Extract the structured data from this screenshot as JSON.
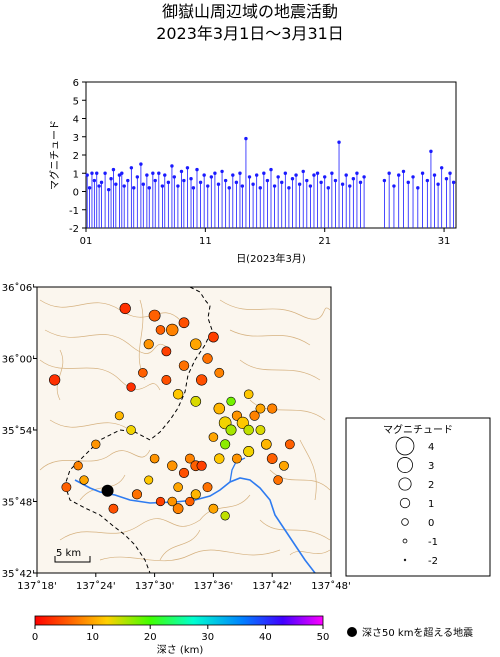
{
  "title": "御嶽山周辺域の地震活動",
  "subtitle": "2023年3月1日～3月31日",
  "chart_data": [
    {
      "type": "bar",
      "name": "magnitude-time",
      "ylabel": "マグニチュード",
      "xlabel": "日(2023年3月)",
      "ylim": [
        -2,
        6
      ],
      "xlim": [
        1,
        32
      ],
      "yticks": [
        "-2",
        "-1",
        "0",
        "1",
        "2",
        "3",
        "4",
        "5",
        "6"
      ],
      "xticks": [
        "01",
        "11",
        "21",
        "31"
      ],
      "series_color": "#1a1aff",
      "points": [
        [
          1.1,
          0.9
        ],
        [
          1.3,
          0.2
        ],
        [
          1.5,
          1.0
        ],
        [
          1.7,
          0.6
        ],
        [
          1.9,
          1.0
        ],
        [
          2.1,
          0.3
        ],
        [
          2.3,
          0.5
        ],
        [
          2.6,
          1.0
        ],
        [
          2.9,
          0.1
        ],
        [
          3.1,
          0.7
        ],
        [
          3.3,
          1.2
        ],
        [
          3.5,
          0.4
        ],
        [
          3.8,
          0.9
        ],
        [
          4.0,
          1.0
        ],
        [
          4.2,
          0.3
        ],
        [
          4.5,
          0.6
        ],
        [
          4.8,
          1.3
        ],
        [
          5.0,
          0.2
        ],
        [
          5.3,
          0.8
        ],
        [
          5.6,
          1.5
        ],
        [
          5.8,
          0.4
        ],
        [
          6.1,
          0.9
        ],
        [
          6.3,
          0.2
        ],
        [
          6.6,
          1.0
        ],
        [
          6.8,
          0.6
        ],
        [
          7.1,
          1.0
        ],
        [
          7.4,
          0.3
        ],
        [
          7.6,
          0.9
        ],
        [
          7.9,
          0.5
        ],
        [
          8.2,
          1.4
        ],
        [
          8.4,
          0.8
        ],
        [
          8.7,
          0.3
        ],
        [
          9.0,
          1.1
        ],
        [
          9.2,
          0.6
        ],
        [
          9.5,
          1.3
        ],
        [
          9.8,
          0.7
        ],
        [
          10.0,
          0.2
        ],
        [
          10.3,
          1.2
        ],
        [
          10.6,
          0.5
        ],
        [
          10.9,
          0.9
        ],
        [
          11.2,
          0.3
        ],
        [
          11.5,
          0.8
        ],
        [
          11.8,
          1.0
        ],
        [
          12.1,
          0.4
        ],
        [
          12.4,
          1.1
        ],
        [
          12.7,
          0.6
        ],
        [
          13.0,
          0.2
        ],
        [
          13.3,
          0.9
        ],
        [
          13.6,
          0.5
        ],
        [
          13.9,
          1.0
        ],
        [
          14.1,
          0.3
        ],
        [
          14.4,
          2.9
        ],
        [
          14.7,
          0.8
        ],
        [
          15.0,
          0.4
        ],
        [
          15.3,
          0.9
        ],
        [
          15.6,
          0.2
        ],
        [
          15.9,
          1.0
        ],
        [
          16.2,
          0.6
        ],
        [
          16.5,
          1.2
        ],
        [
          16.8,
          0.3
        ],
        [
          17.1,
          0.8
        ],
        [
          17.4,
          0.5
        ],
        [
          17.7,
          1.0
        ],
        [
          18.0,
          0.2
        ],
        [
          18.3,
          0.7
        ],
        [
          18.6,
          0.9
        ],
        [
          18.9,
          0.4
        ],
        [
          19.2,
          1.1
        ],
        [
          19.5,
          0.6
        ],
        [
          19.8,
          0.3
        ],
        [
          20.1,
          0.9
        ],
        [
          20.4,
          1.0
        ],
        [
          20.7,
          0.5
        ],
        [
          21.0,
          0.8
        ],
        [
          21.3,
          0.2
        ],
        [
          21.6,
          1.0
        ],
        [
          21.9,
          0.6
        ],
        [
          22.2,
          2.7
        ],
        [
          22.5,
          0.4
        ],
        [
          22.8,
          0.9
        ],
        [
          23.1,
          0.3
        ],
        [
          23.4,
          0.7
        ],
        [
          23.7,
          1.0
        ],
        [
          24.0,
          0.5
        ],
        [
          24.3,
          0.8
        ],
        [
          26.0,
          0.6
        ],
        [
          26.4,
          1.0
        ],
        [
          26.8,
          0.3
        ],
        [
          27.2,
          0.9
        ],
        [
          27.6,
          1.1
        ],
        [
          28.0,
          0.5
        ],
        [
          28.4,
          0.8
        ],
        [
          28.8,
          0.2
        ],
        [
          29.2,
          1.0
        ],
        [
          29.6,
          0.6
        ],
        [
          29.9,
          2.2
        ],
        [
          30.2,
          0.9
        ],
        [
          30.5,
          0.4
        ],
        [
          30.8,
          1.3
        ],
        [
          31.2,
          0.7
        ],
        [
          31.5,
          1.0
        ],
        [
          31.8,
          0.5
        ]
      ]
    },
    {
      "type": "scatter",
      "name": "epicenter-map",
      "xlim": [
        137.3,
        137.8
      ],
      "ylim": [
        35.7,
        36.1
      ],
      "xticks": [
        "137˚18'",
        "137˚24'",
        "137˚30'",
        "137˚36'",
        "137˚42'",
        "137˚48'"
      ],
      "yticks": [
        "35˚42'",
        "35˚48'",
        "35˚54'",
        "36˚00'",
        "36˚06'"
      ],
      "scale_label": "5 km",
      "deep_event_label": "深さ50 kmを超える地震",
      "deep_event": [
        137.42,
        35.815
      ],
      "points": [
        [
          137.45,
          36.07,
          1.4,
          3
        ],
        [
          137.5,
          36.06,
          1.6,
          6
        ],
        [
          137.53,
          36.04,
          1.8,
          8
        ],
        [
          137.55,
          36.05,
          1.2,
          5
        ],
        [
          137.57,
          36.02,
          1.5,
          10
        ],
        [
          137.52,
          36.01,
          0.9,
          4
        ],
        [
          137.55,
          35.99,
          1.1,
          7
        ],
        [
          137.6,
          36.03,
          1.2,
          4
        ],
        [
          137.61,
          35.98,
          0.9,
          8
        ],
        [
          137.58,
          35.97,
          1.4,
          5
        ],
        [
          137.49,
          36.02,
          1.0,
          9
        ],
        [
          137.48,
          35.98,
          0.8,
          6
        ],
        [
          137.46,
          35.96,
          0.7,
          3
        ],
        [
          137.54,
          35.95,
          1.1,
          12
        ],
        [
          137.57,
          35.94,
          1.2,
          14
        ],
        [
          137.61,
          35.93,
          1.5,
          11
        ],
        [
          137.62,
          35.91,
          1.9,
          13
        ],
        [
          137.63,
          35.9,
          1.3,
          16
        ],
        [
          137.64,
          35.92,
          1.0,
          9
        ],
        [
          137.65,
          35.91,
          1.7,
          12
        ],
        [
          137.66,
          35.9,
          1.1,
          15
        ],
        [
          137.6,
          35.89,
          0.8,
          10
        ],
        [
          137.62,
          35.88,
          1.0,
          17
        ],
        [
          137.67,
          35.92,
          1.0,
          8
        ],
        [
          137.68,
          35.9,
          0.9,
          14
        ],
        [
          137.69,
          35.88,
          1.2,
          11
        ],
        [
          137.66,
          35.87,
          1.3,
          13
        ],
        [
          137.64,
          35.86,
          0.9,
          9
        ],
        [
          137.61,
          35.86,
          1.1,
          12
        ],
        [
          137.7,
          35.86,
          1.2,
          6
        ],
        [
          137.72,
          35.85,
          0.9,
          10
        ],
        [
          137.71,
          35.83,
          0.8,
          7
        ],
        [
          137.56,
          35.86,
          0.9,
          8
        ],
        [
          137.57,
          35.85,
          1.2,
          6
        ],
        [
          137.55,
          35.84,
          1.0,
          5
        ],
        [
          137.53,
          35.85,
          1.1,
          9
        ],
        [
          137.58,
          35.85,
          1.0,
          4
        ],
        [
          137.54,
          35.82,
          0.8,
          10
        ],
        [
          137.59,
          35.82,
          0.9,
          7
        ],
        [
          137.57,
          35.81,
          1.0,
          11
        ],
        [
          137.56,
          35.8,
          0.7,
          6
        ],
        [
          137.53,
          35.8,
          0.8,
          9
        ],
        [
          137.54,
          35.79,
          1.2,
          8
        ],
        [
          137.51,
          35.8,
          0.7,
          4
        ],
        [
          137.47,
          35.81,
          1.0,
          7
        ],
        [
          137.43,
          35.79,
          0.9,
          5
        ],
        [
          137.37,
          35.85,
          0.7,
          8
        ],
        [
          137.38,
          35.83,
          0.7,
          10
        ],
        [
          137.35,
          35.82,
          0.9,
          6
        ],
        [
          137.33,
          35.97,
          1.4,
          3
        ],
        [
          137.5,
          35.86,
          0.8,
          9
        ],
        [
          137.49,
          35.83,
          0.6,
          12
        ],
        [
          137.6,
          35.79,
          0.9,
          10
        ],
        [
          137.62,
          35.78,
          0.7,
          15
        ],
        [
          137.44,
          35.92,
          0.6,
          11
        ],
        [
          137.46,
          35.9,
          0.8,
          13
        ],
        [
          137.4,
          35.88,
          0.7,
          9
        ],
        [
          137.66,
          35.95,
          0.8,
          12
        ],
        [
          137.68,
          35.93,
          0.9,
          10
        ],
        [
          137.63,
          35.94,
          0.7,
          18
        ],
        [
          137.7,
          35.93,
          1.0,
          8
        ],
        [
          137.73,
          35.88,
          0.9,
          6
        ],
        [
          137.52,
          35.97,
          0.9,
          5
        ],
        [
          137.59,
          36.0,
          1.1,
          7
        ],
        [
          137.51,
          36.04,
          0.8,
          6
        ]
      ]
    },
    {
      "type": "legend",
      "name": "magnitude-legend",
      "title": "マグニチュード",
      "levels": [
        "4",
        "3",
        "2",
        "1",
        "0",
        "-1",
        "-2"
      ]
    },
    {
      "type": "colorbar",
      "name": "depth-scale",
      "label": "深さ (km)",
      "range": [
        0,
        50
      ],
      "ticks": [
        "0",
        "10",
        "20",
        "30",
        "40",
        "50"
      ]
    }
  ]
}
